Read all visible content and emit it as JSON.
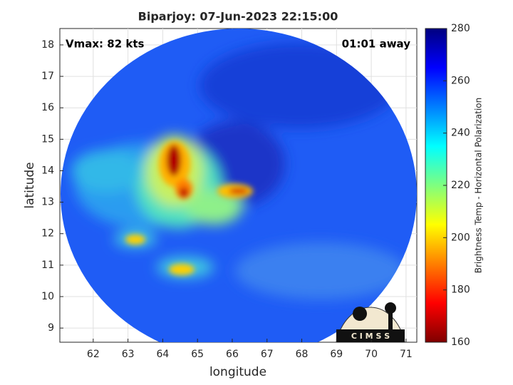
{
  "chart_data": {
    "type": "image",
    "title": "Biparjoy: 07-Jun-2023 22:15:00",
    "xlabel": "longitude",
    "ylabel": "latitude",
    "annotation_left": "Vmax: 82 kts",
    "annotation_right": "01:01 away",
    "logo_text": "C I M S S",
    "xlim": [
      61.04,
      71.31
    ],
    "ylim": [
      8.55,
      18.52
    ],
    "xticks": [
      62,
      63,
      64,
      65,
      66,
      67,
      68,
      69,
      70,
      71
    ],
    "yticks": [
      9,
      10,
      11,
      12,
      13,
      14,
      15,
      16,
      17,
      18
    ],
    "grid": true,
    "colorbar": {
      "label": "Brightness Temp - Horizontal Polarization",
      "lim": [
        160,
        280
      ],
      "ticks": [
        160,
        180,
        200,
        220,
        240,
        260,
        280
      ],
      "colors": [
        "#7f0000",
        "#ff0000",
        "#ff7f00",
        "#ffff00",
        "#7fff7f",
        "#00ffff",
        "#007fff",
        "#0000ff",
        "#00007f"
      ]
    }
  }
}
